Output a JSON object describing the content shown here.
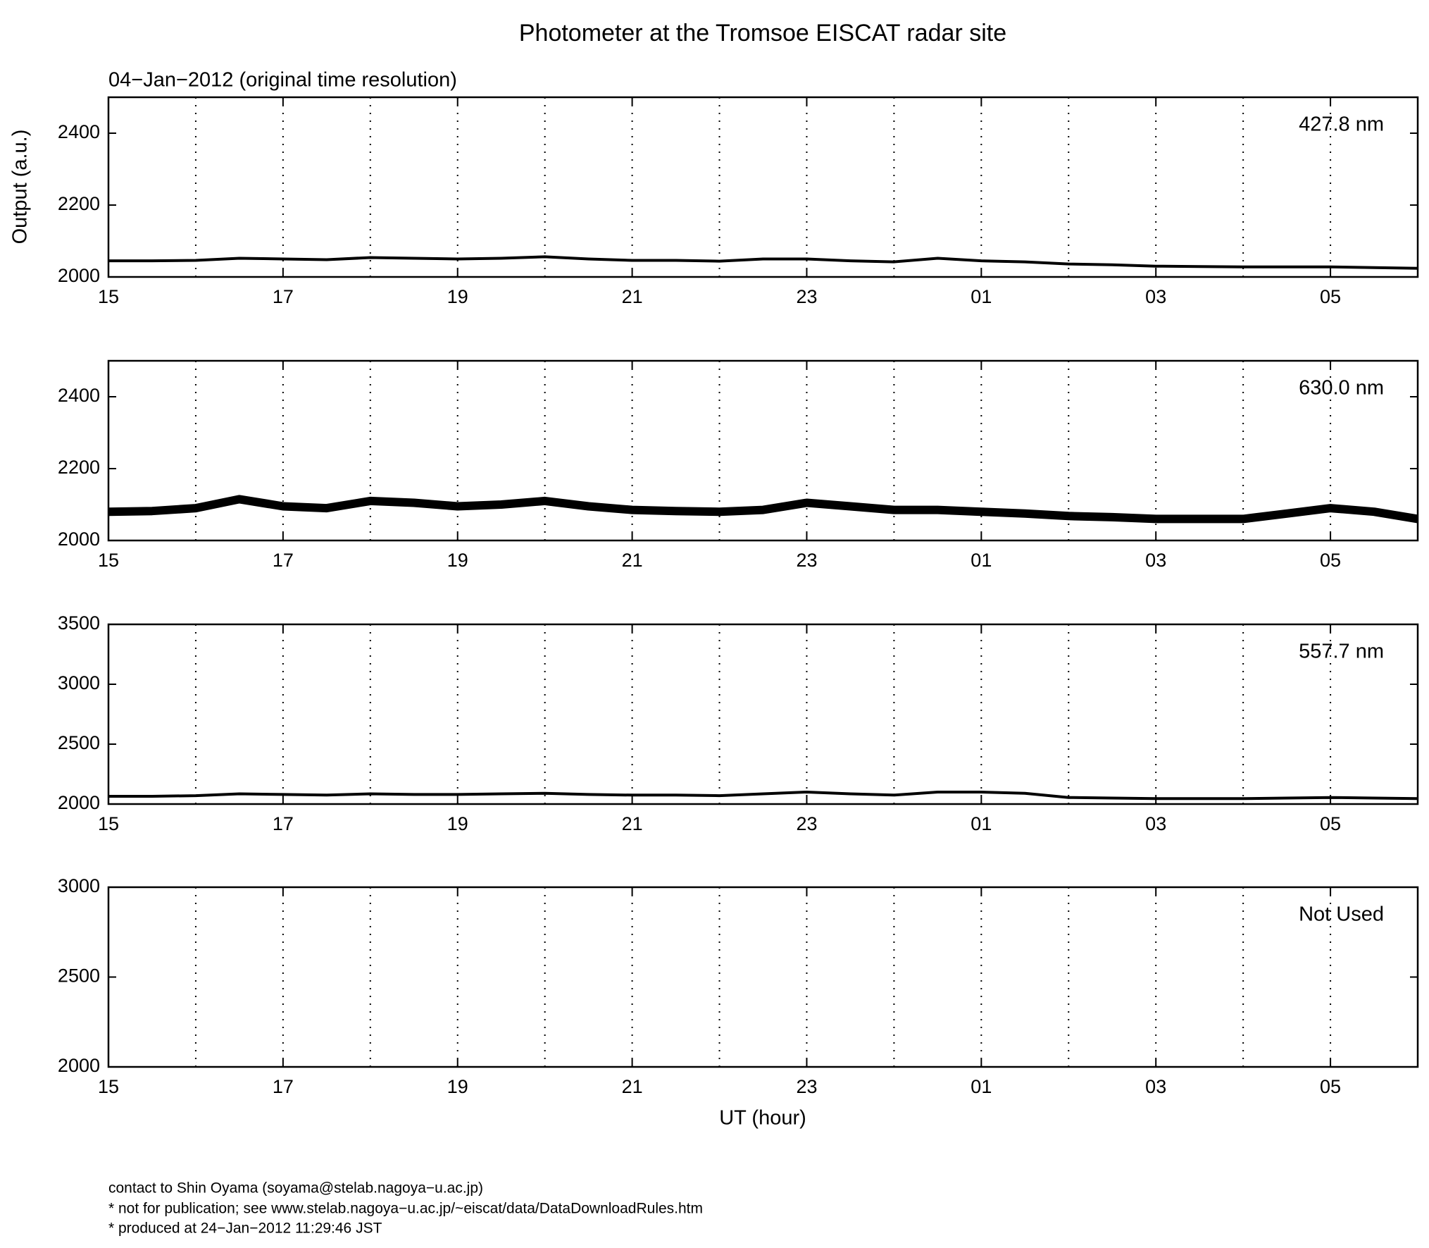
{
  "title": "Photometer at the Tromsoe EISCAT radar site",
  "subtitle": "04−Jan−2012 (original time resolution)",
  "ylabel": "Output (a.u.)",
  "xlabel": "UT (hour)",
  "footer": [
    "contact to Shin Oyama (soyama@stelab.nagoya−u.ac.jp)",
    "* not for publication; see www.stelab.nagoya−u.ac.jp/~eiscat/data/DataDownloadRules.htm",
    "* produced at 24−Jan−2012 11:29:46 JST"
  ],
  "chart_data": [
    {
      "type": "line",
      "label": "427.8 nm",
      "xlim": [
        15,
        30
      ],
      "ylim": [
        2000,
        2500
      ],
      "yticks": [
        2000,
        2200,
        2400
      ],
      "xticks": [
        15,
        17,
        19,
        21,
        23,
        {
          "value": 25,
          "label": "01"
        },
        {
          "value": 27,
          "label": "03"
        },
        {
          "value": 29,
          "label": "05"
        }
      ],
      "xminor": [
        16,
        18,
        20,
        22,
        24,
        26,
        28
      ],
      "grid": true,
      "x": [
        15,
        15.5,
        16,
        16.5,
        17,
        17.5,
        18,
        18.5,
        19,
        19.5,
        20,
        20.5,
        21,
        21.5,
        22,
        22.5,
        23,
        23.5,
        24,
        24.5,
        25,
        25.5,
        26,
        26.5,
        27,
        27.5,
        28,
        28.5,
        29,
        29.5,
        30
      ],
      "series": [
        {
          "color": "#000000",
          "values": [
            2045,
            2045,
            2046,
            2052,
            2050,
            2048,
            2054,
            2052,
            2050,
            2052,
            2056,
            2050,
            2046,
            2046,
            2044,
            2050,
            2050,
            2045,
            2042,
            2052,
            2045,
            2042,
            2036,
            2034,
            2030,
            2029,
            2028,
            2028,
            2028,
            2026,
            2024
          ]
        }
      ]
    },
    {
      "type": "line",
      "label": "630.0 nm",
      "xlim": [
        15,
        30
      ],
      "ylim": [
        2000,
        2500
      ],
      "yticks": [
        2000,
        2200,
        2400
      ],
      "xticks": [
        15,
        17,
        19,
        21,
        23,
        {
          "value": 25,
          "label": "01"
        },
        {
          "value": 27,
          "label": "03"
        },
        {
          "value": 29,
          "label": "05"
        }
      ],
      "xminor": [
        16,
        18,
        20,
        22,
        24,
        26,
        28
      ],
      "grid": true,
      "x": [
        15,
        15.5,
        16,
        16.5,
        17,
        17.5,
        18,
        18.5,
        19,
        19.5,
        20,
        20.5,
        21,
        21.5,
        22,
        22.5,
        23,
        23.5,
        24,
        24.5,
        25,
        25.5,
        26,
        26.5,
        27,
        27.5,
        28,
        28.5,
        29,
        29.5,
        30
      ],
      "series": [
        {
          "color": "#000000",
          "values": [
            2080,
            2082,
            2090,
            2115,
            2095,
            2090,
            2110,
            2105,
            2095,
            2100,
            2110,
            2095,
            2085,
            2082,
            2080,
            2085,
            2105,
            2095,
            2085,
            2085,
            2080,
            2075,
            2068,
            2065,
            2060,
            2060,
            2060,
            2075,
            2090,
            2080,
            2060
          ]
        }
      ]
    },
    {
      "type": "line",
      "label": "557.7 nm",
      "xlim": [
        15,
        30
      ],
      "ylim": [
        2000,
        3500
      ],
      "yticks": [
        2000,
        2500,
        3000,
        3500
      ],
      "xticks": [
        15,
        17,
        19,
        21,
        23,
        {
          "value": 25,
          "label": "01"
        },
        {
          "value": 27,
          "label": "03"
        },
        {
          "value": 29,
          "label": "05"
        }
      ],
      "xminor": [
        16,
        18,
        20,
        22,
        24,
        26,
        28
      ],
      "grid": true,
      "x": [
        15,
        15.5,
        16,
        16.5,
        17,
        17.5,
        18,
        18.5,
        19,
        19.5,
        20,
        20.5,
        21,
        21.5,
        22,
        22.5,
        23,
        23.5,
        24,
        24.5,
        25,
        25.5,
        26,
        26.5,
        27,
        27.5,
        28,
        28.5,
        29,
        29.5,
        30
      ],
      "series": [
        {
          "color": "#000000",
          "values": [
            2065,
            2065,
            2070,
            2085,
            2080,
            2075,
            2085,
            2080,
            2080,
            2085,
            2090,
            2080,
            2075,
            2075,
            2070,
            2085,
            2100,
            2085,
            2075,
            2100,
            2100,
            2090,
            2055,
            2050,
            2045,
            2045,
            2045,
            2050,
            2055,
            2050,
            2045
          ]
        }
      ]
    },
    {
      "type": "line",
      "label": "Not Used",
      "xlim": [
        15,
        30
      ],
      "ylim": [
        2000,
        3000
      ],
      "yticks": [
        2000,
        2500,
        3000
      ],
      "xticks": [
        15,
        17,
        19,
        21,
        23,
        {
          "value": 25,
          "label": "01"
        },
        {
          "value": 27,
          "label": "03"
        },
        {
          "value": 29,
          "label": "05"
        }
      ],
      "xminor": [
        16,
        18,
        20,
        22,
        24,
        26,
        28
      ],
      "grid": true,
      "series": []
    }
  ]
}
